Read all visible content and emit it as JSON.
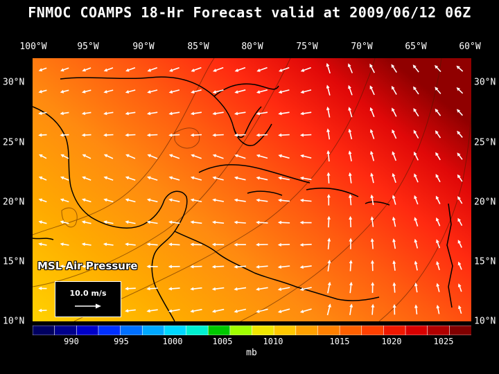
{
  "title": "FNMOC COAMPS 18-Hr Forecast valid at 2009/06/12 06Z",
  "longitude_labels": [
    "100°W",
    "95°W",
    "90°W",
    "85°W",
    "80°W",
    "75°W",
    "70°W",
    "65°W",
    "60°W"
  ],
  "latitude_labels": [
    "30°N",
    "25°N",
    "20°N",
    "15°N",
    "10°N"
  ],
  "map": {
    "field_label": "MSL Air Pressure",
    "vector_legend": "10.0 m/s",
    "extent": {
      "lon_min": -100,
      "lon_max": -60,
      "lat_min": 10,
      "lat_max": 32
    }
  },
  "colorbar": {
    "tick_labels": [
      "990",
      "995",
      "1000",
      "1005",
      "1010",
      "1015",
      "1020",
      "1025"
    ],
    "unit": "mb",
    "colors": [
      "#000060",
      "#00008c",
      "#0000c8",
      "#0030ff",
      "#0070ff",
      "#00a8ff",
      "#00d8ff",
      "#00f0d0",
      "#00c800",
      "#a0ff00",
      "#f0e600",
      "#ffc800",
      "#ffa000",
      "#ff8000",
      "#ff6000",
      "#ff4000",
      "#f01800",
      "#d80000",
      "#b00000",
      "#800000"
    ]
  }
}
